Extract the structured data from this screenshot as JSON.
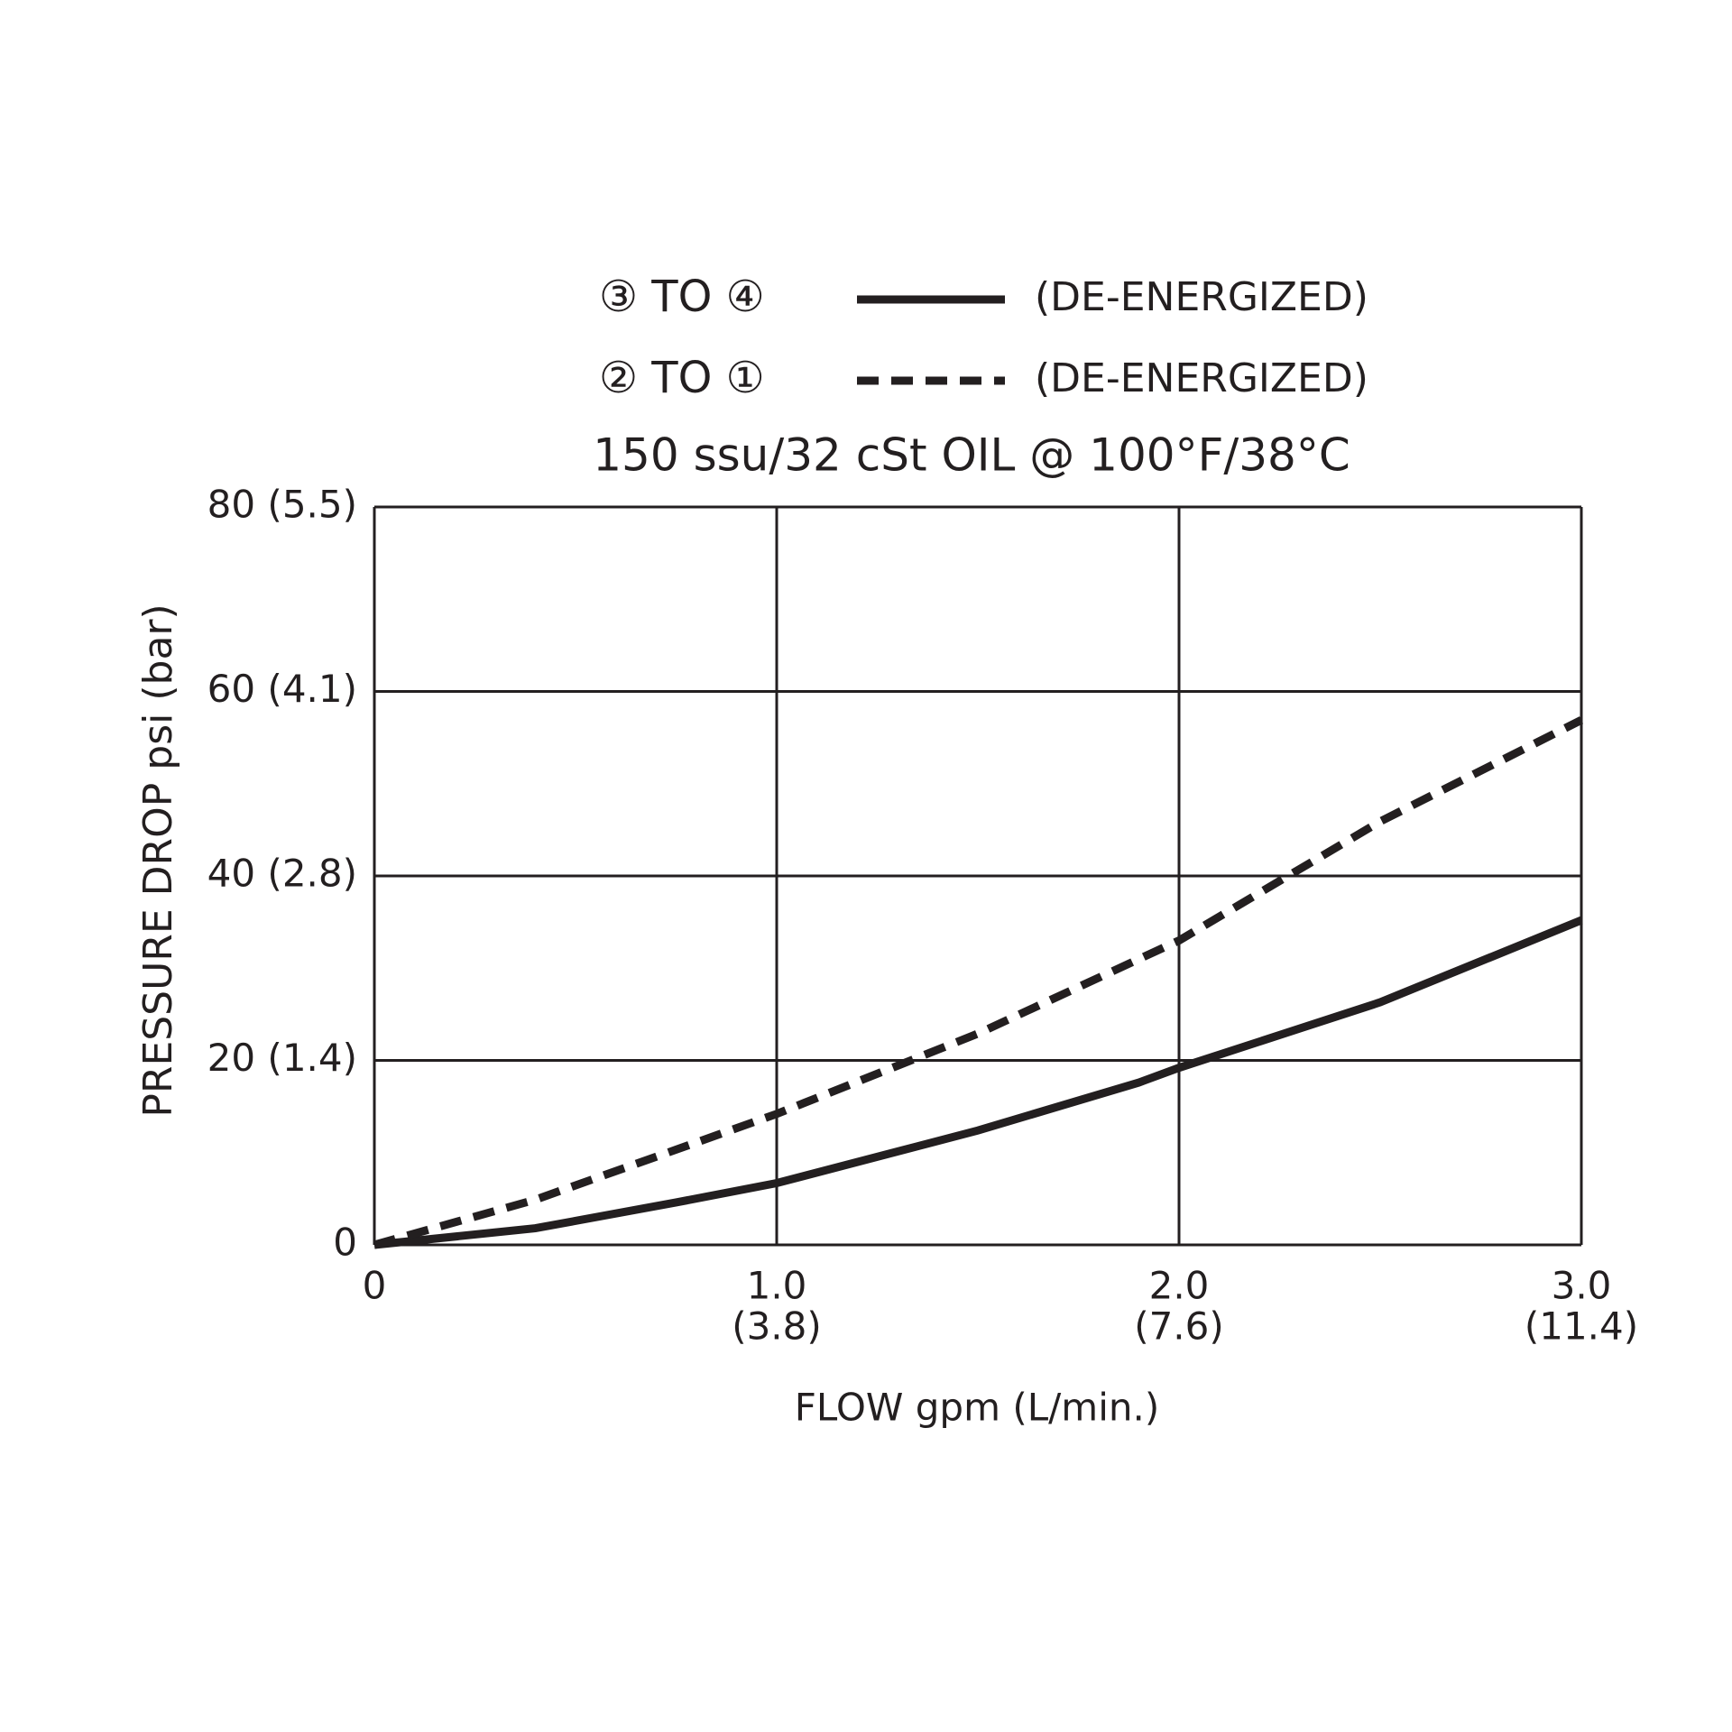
{
  "chart_data": {
    "type": "line",
    "subtitle": "150 ssu/32 cSt OIL @ 100°F/38°C",
    "x_label": "FLOW gpm (L/min.)",
    "y_label": "PRESSURE DROP psi (bar)",
    "xlim": [
      0,
      3
    ],
    "xticks": [
      0,
      {
        "value": 1,
        "label": "1.0"
      },
      {
        "value": 2,
        "label": "2.0"
      },
      {
        "value": 3,
        "label": "3.0"
      }
    ],
    "x_secondary_labels": [
      null,
      "(3.8)",
      "(7.6)",
      "(11.4)"
    ],
    "ylim": [
      0,
      80
    ],
    "yticks": [
      0,
      {
        "value": 20,
        "label": "20 (1.4)"
      },
      {
        "value": 40,
        "label": "40 (2.8)"
      },
      {
        "value": 60,
        "label": "60 (4.1)"
      },
      {
        "value": 80,
        "label": "80 (5.5)"
      }
    ],
    "grid": true,
    "series": [
      {
        "name": "③ TO ④",
        "note": "(DE-ENERGIZED)",
        "color": "#231f20",
        "dash": "solid",
        "x": [
          0,
          0.4,
          0.75,
          1.0,
          1.5,
          1.9,
          2.0,
          2.5,
          3.0
        ],
        "values": [
          0,
          1.8,
          4.6,
          6.7,
          12.4,
          17.6,
          19.2,
          26.3,
          35.2
        ]
      },
      {
        "name": "② TO ①",
        "note": "(DE-ENERGIZED)",
        "color": "#231f20",
        "dash": "dashed",
        "x": [
          0,
          0.4,
          1.0,
          1.5,
          2.0,
          2.5,
          3.0
        ],
        "values": [
          0,
          4.9,
          14.2,
          22.9,
          33.0,
          45.9,
          56.9
        ]
      }
    ]
  }
}
